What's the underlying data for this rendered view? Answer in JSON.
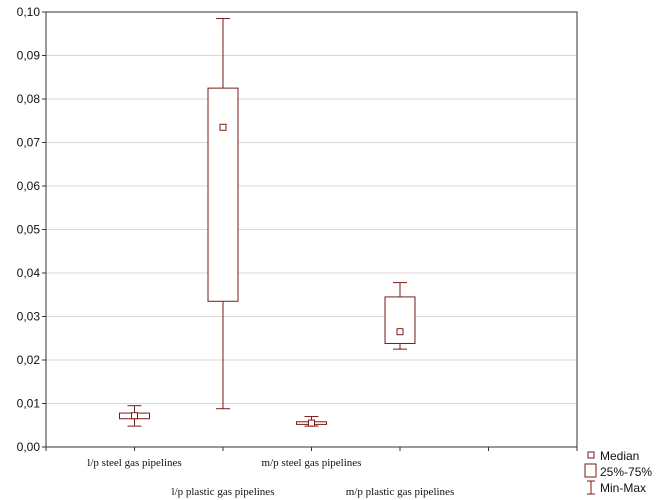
{
  "chart_data": {
    "type": "box",
    "title": "",
    "xlabel": "",
    "ylabel": "",
    "ylim": [
      0,
      0.1
    ],
    "grid": "horizontal",
    "y_ticks": [
      0.0,
      0.01,
      0.02,
      0.03,
      0.04,
      0.05,
      0.06,
      0.07,
      0.08,
      0.09,
      0.1
    ],
    "y_tick_labels": [
      "0,00",
      "0,01",
      "0,02",
      "0,03",
      "0,04",
      "0,05",
      "0,06",
      "0,07",
      "0,08",
      "0,09",
      "0,10"
    ],
    "categories": [
      "l/p steel gas pipelines",
      "l/p plastic gas pipelines",
      "m/p steel gas pipelines",
      "m/p plastic gas pipelines"
    ],
    "series": [
      {
        "values": [
          {
            "min": 0.0048,
            "q1": 0.0065,
            "median": 0.0072,
            "q3": 0.0078,
            "max": 0.0095
          },
          {
            "min": 0.0088,
            "q1": 0.0335,
            "median": 0.0735,
            "q3": 0.0825,
            "max": 0.0985
          },
          {
            "min": 0.0048,
            "q1": 0.0052,
            "median": 0.0055,
            "q3": 0.0058,
            "max": 0.007
          },
          {
            "min": 0.0225,
            "q1": 0.0238,
            "median": 0.0265,
            "q3": 0.0345,
            "max": 0.0378
          }
        ]
      }
    ],
    "legend": {
      "position": "bottom-right",
      "entries": [
        "Median",
        "25%-75%",
        "Min-Max"
      ]
    },
    "colors": {
      "box": "#7a1a1a",
      "grid": "#d8d8d8",
      "axis": "#333333"
    }
  }
}
